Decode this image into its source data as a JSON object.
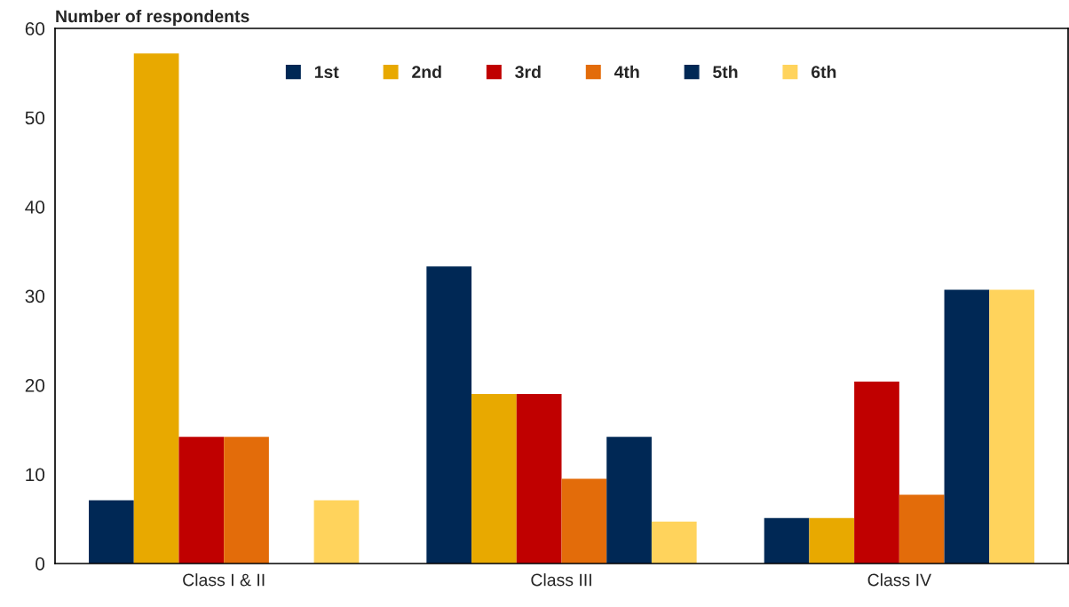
{
  "chart_data": {
    "type": "bar",
    "ylabel": "Number of respondents",
    "categories": [
      "Class I & II",
      "Class III",
      "Class IV"
    ],
    "series": [
      {
        "name": "1st",
        "color": "#002855",
        "values": [
          7.1,
          33.3,
          5.1
        ]
      },
      {
        "name": "2nd",
        "color": "#e8a900",
        "values": [
          57.2,
          19.0,
          5.1
        ]
      },
      {
        "name": "3rd",
        "color": "#c00000",
        "values": [
          14.2,
          19.0,
          20.4
        ]
      },
      {
        "name": "4th",
        "color": "#e36c0a",
        "values": [
          14.2,
          9.5,
          7.7
        ]
      },
      {
        "name": "5th",
        "color": "#002855",
        "values": [
          0,
          14.2,
          30.7
        ]
      },
      {
        "name": "6th",
        "color": "#ffd35c",
        "values": [
          7.1,
          4.7,
          30.7
        ]
      }
    ],
    "ylim": [
      0,
      60
    ],
    "yticks": [
      0,
      10,
      20,
      30,
      40,
      50,
      60
    ],
    "grid": false,
    "legend": "top"
  }
}
